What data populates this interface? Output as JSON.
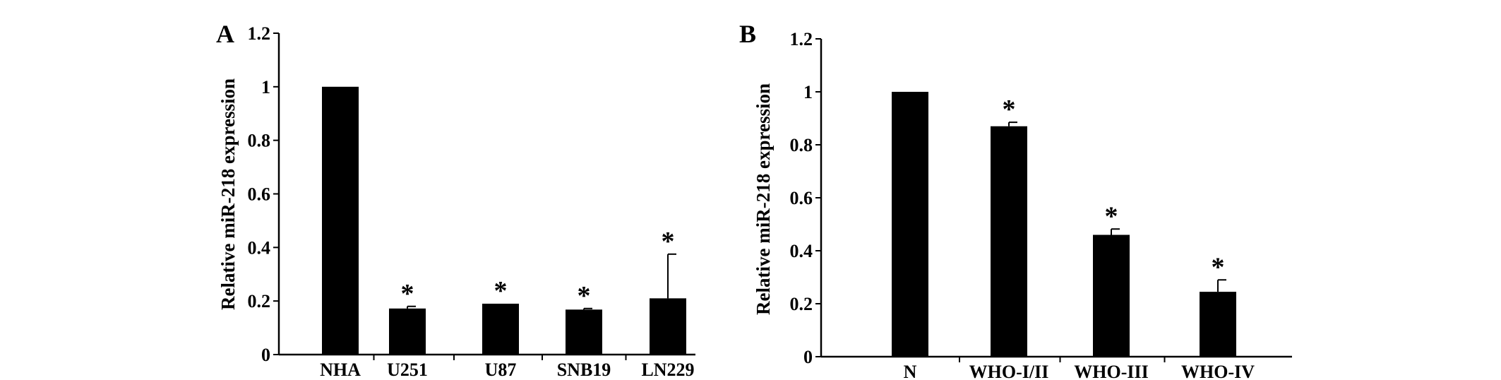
{
  "chart_data": [
    {
      "panel_label": "A",
      "type": "bar",
      "categories": [
        "NHA",
        "U251",
        "U87",
        "SNB19",
        "LN229"
      ],
      "values": [
        1.0,
        0.172,
        0.19,
        0.168,
        0.21
      ],
      "errors": [
        0,
        0.008,
        0,
        0.004,
        0.165
      ],
      "significance": [
        "",
        "*",
        "*",
        "*",
        "*"
      ],
      "xlabel": "",
      "ylabel": "Relative miR-218 expression",
      "ylim": [
        0,
        1.2
      ],
      "yticks": [
        "0",
        "0.2",
        "0.4",
        "0.6",
        "0.8",
        "1",
        "1.2"
      ],
      "bar_color": "#000000",
      "grid": false,
      "legend": "none"
    },
    {
      "panel_label": "B",
      "type": "bar",
      "categories": [
        "N",
        "WHO-I/II",
        "WHO-III",
        "WHO-IV"
      ],
      "values": [
        1.0,
        0.87,
        0.46,
        0.245
      ],
      "errors": [
        0,
        0.015,
        0.022,
        0.045
      ],
      "significance": [
        "",
        "*",
        "*",
        "*"
      ],
      "xlabel": "",
      "ylabel": "Relative miR-218 expression",
      "ylim": [
        0,
        1.2
      ],
      "yticks": [
        "0",
        "0.2",
        "0.4",
        "0.6",
        "0.8",
        "1",
        "1.2"
      ],
      "bar_color": "#000000",
      "grid": false,
      "legend": "none"
    }
  ]
}
